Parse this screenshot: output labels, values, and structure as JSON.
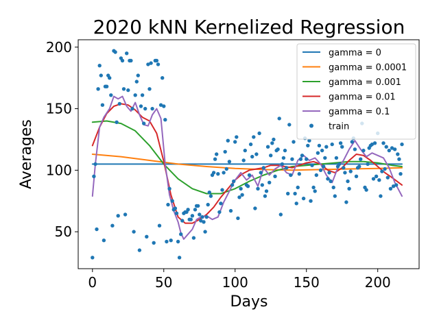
{
  "chart_data": {
    "type": "scatter",
    "title": "2020 kNN Kernelized Regression",
    "xlabel": "Days",
    "ylabel": "Averages",
    "xlim": [
      -10,
      229
    ],
    "ylim": [
      20,
      206
    ],
    "xticks": [
      0,
      50,
      100,
      150,
      200
    ],
    "yticks": [
      50,
      100,
      150,
      200
    ],
    "grid": false,
    "legend_position": "top-right",
    "series": [
      {
        "name": "gamma = 0",
        "kind": "line",
        "color": "#1f77b4",
        "x": [
          0,
          217
        ],
        "y": [
          105,
          105
        ]
      },
      {
        "name": "gamma = 0.0001",
        "kind": "line",
        "color": "#ff7f0e",
        "x": [
          0,
          20,
          40,
          60,
          80,
          100,
          120,
          140,
          160,
          180,
          200,
          217
        ],
        "y": [
          113,
          111,
          108,
          105,
          103,
          101.5,
          100.5,
          100,
          100.5,
          101,
          101.5,
          102
        ]
      },
      {
        "name": "gamma = 0.001",
        "kind": "line",
        "color": "#2ca02c",
        "x": [
          0,
          10,
          20,
          30,
          40,
          50,
          60,
          70,
          80,
          90,
          100,
          110,
          120,
          130,
          140,
          150,
          160,
          170,
          180,
          190,
          200,
          210,
          217
        ],
        "y": [
          139,
          140,
          138,
          132,
          120,
          105,
          93,
          85,
          81,
          81,
          85,
          91,
          96,
          100,
          103,
          104,
          105,
          106,
          107,
          107,
          106,
          104,
          103
        ]
      },
      {
        "name": "gamma = 0.01",
        "kind": "line",
        "color": "#d62728",
        "x": [
          0,
          5,
          10,
          15,
          20,
          25,
          30,
          35,
          40,
          45,
          50,
          55,
          60,
          65,
          70,
          75,
          80,
          85,
          90,
          95,
          100,
          105,
          110,
          115,
          120,
          125,
          130,
          135,
          140,
          145,
          150,
          155,
          160,
          165,
          170,
          175,
          180,
          185,
          190,
          195,
          200,
          205,
          210,
          217
        ],
        "y": [
          120,
          135,
          146,
          152,
          154,
          153,
          149,
          143,
          140,
          130,
          107,
          80,
          62,
          57,
          57,
          60,
          64,
          70,
          78,
          85,
          92,
          97,
          100,
          101,
          102,
          104,
          104,
          103,
          102,
          104,
          106,
          107,
          105,
          100,
          98,
          102,
          108,
          113,
          112,
          108,
          103,
          98,
          94,
          88
        ]
      },
      {
        "name": "gamma = 0.1",
        "kind": "line",
        "color": "#9467bd",
        "x": [
          0,
          2,
          5,
          8,
          12,
          15,
          18,
          21,
          24,
          27,
          30,
          33,
          36,
          39,
          42,
          45,
          48,
          51,
          54,
          57,
          60,
          62,
          64,
          67,
          70,
          73,
          76,
          80,
          84,
          88,
          92,
          96,
          100,
          104,
          108,
          112,
          116,
          120,
          124,
          128,
          132,
          136,
          140,
          144,
          148,
          152,
          156,
          160,
          164,
          168,
          172,
          176,
          180,
          184,
          188,
          192,
          196,
          200,
          204,
          208,
          212,
          217
        ],
        "y": [
          79,
          105,
          135,
          143,
          150,
          160,
          158,
          160,
          152,
          148,
          155,
          145,
          137,
          136,
          145,
          150,
          142,
          105,
          80,
          67,
          58,
          49,
          44,
          48,
          52,
          60,
          62,
          63,
          60,
          62,
          74,
          83,
          92,
          98,
          92,
          96,
          87,
          102,
          96,
          101,
          104,
          98,
          96,
          108,
          112,
          108,
          110,
          105,
          96,
          90,
          102,
          108,
          117,
          124,
          117,
          111,
          114,
          112,
          110,
          102,
          90,
          79
        ]
      },
      {
        "name": "train",
        "kind": "scatter",
        "color": "#1f77b4",
        "x": [
          0,
          1,
          2,
          3,
          4,
          5,
          6,
          7,
          8,
          9,
          10,
          11,
          12,
          13,
          14,
          15,
          16,
          17,
          18,
          19,
          20,
          21,
          22,
          23,
          24,
          25,
          26,
          27,
          28,
          29,
          30,
          31,
          32,
          33,
          34,
          35,
          36,
          37,
          38,
          39,
          40,
          41,
          42,
          43,
          44,
          45,
          46,
          47,
          48,
          49,
          50,
          51,
          52,
          53,
          54,
          55,
          56,
          57,
          58,
          59,
          60,
          61,
          62,
          63,
          64,
          65,
          66,
          67,
          68,
          69,
          70,
          71,
          72,
          73,
          74,
          75,
          76,
          77,
          78,
          79,
          80,
          81,
          82,
          83,
          84,
          85,
          86,
          87,
          88,
          89,
          90,
          91,
          92,
          93,
          94,
          95,
          96,
          97,
          98,
          99,
          100,
          101,
          102,
          103,
          104,
          105,
          106,
          107,
          108,
          109,
          110,
          111,
          112,
          113,
          114,
          115,
          116,
          117,
          118,
          119,
          120,
          121,
          122,
          123,
          124,
          125,
          126,
          127,
          128,
          129,
          130,
          131,
          132,
          133,
          134,
          135,
          136,
          137,
          138,
          139,
          140,
          141,
          142,
          143,
          144,
          145,
          146,
          147,
          148,
          149,
          150,
          151,
          152,
          153,
          154,
          155,
          156,
          157,
          158,
          159,
          160,
          161,
          162,
          163,
          164,
          165,
          166,
          167,
          168,
          169,
          170,
          171,
          172,
          173,
          174,
          175,
          176,
          177,
          178,
          179,
          180,
          181,
          182,
          183,
          184,
          185,
          186,
          187,
          188,
          189,
          190,
          191,
          192,
          193,
          194,
          195,
          196,
          197,
          198,
          199,
          200,
          201,
          202,
          203,
          204,
          205,
          206,
          207,
          208,
          209,
          210,
          211,
          212,
          213,
          214,
          215,
          216,
          217
        ],
        "y": [
          29,
          95,
          105,
          52,
          166,
          185,
          177,
          153,
          43,
          168,
          168,
          177,
          175,
          161,
          55,
          197,
          196,
          139,
          63,
          154,
          191,
          189,
          166,
          64,
          195,
          165,
          189,
          189,
          150,
          50,
          161,
          172,
          177,
          35,
          152,
          161,
          138,
          150,
          46,
          186,
          166,
          187,
          150,
          41,
          189,
          189,
          186,
          55,
          153,
          175,
          152,
          141,
          42,
          72,
          85,
          43,
          75,
          68,
          69,
          65,
          42,
          29,
          48,
          59,
          65,
          66,
          66,
          68,
          60,
          60,
          63,
          45,
          68,
          71,
          71,
          64,
          59,
          62,
          58,
          50,
          62,
          72,
          82,
          79,
          96,
          98,
          109,
          113,
          97,
          66,
          73,
          84,
          98,
          115,
          101,
          124,
          107,
          67,
          88,
          91,
          123,
          127,
          61,
          78,
          85,
          80,
          108,
          116,
          88,
          87,
          96,
          121,
          111,
          127,
          69,
          113,
          85,
          130,
          98,
          88,
          102,
          79,
          83,
          119,
          90,
          112,
          122,
          125,
          95,
          116,
          117,
          142,
          64,
          105,
          110,
          116,
          102,
          81,
          137,
          96,
          109,
          123,
          81,
          73,
          86,
          97,
          109,
          112,
          77,
          126,
          109,
          120,
          124,
          75,
          104,
          86,
          83,
          96,
          114,
          120,
          100,
          116,
          103,
          110,
          119,
          93,
          98,
          91,
          121,
          86,
          79,
          110,
          103,
          105,
          122,
          119,
          102,
          98,
          74,
          91,
          85,
          99,
          123,
          126,
          117,
          95,
          102,
          103,
          109,
          138,
          116,
          86,
          84,
          105,
          118,
          120,
          121,
          93,
          122,
          95,
          130,
          92,
          79,
          99,
          122,
          101,
          119,
          94,
          116,
          85,
          118,
          87,
          117,
          88,
          113,
          109,
          97,
          121
        ]
      }
    ]
  }
}
